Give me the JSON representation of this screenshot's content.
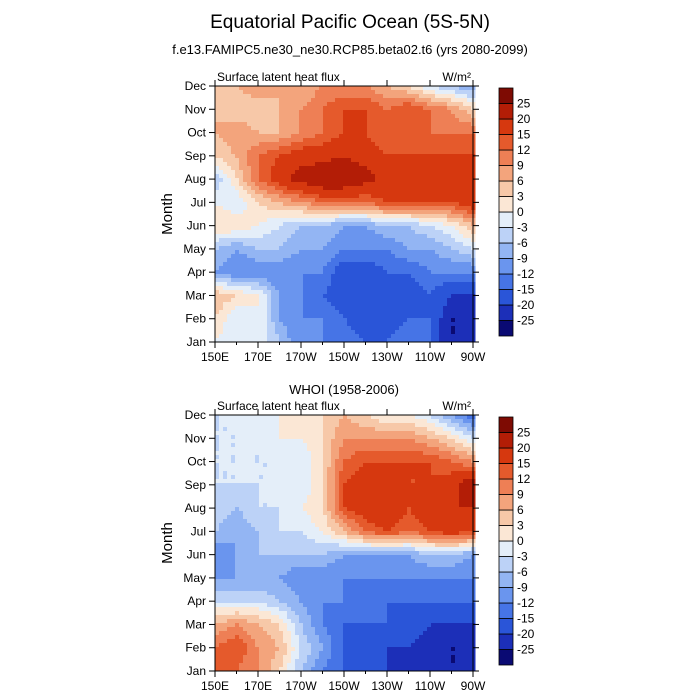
{
  "figure": {
    "title": "Equatorial Pacific Ocean (5S-5N)",
    "subtitle": "f.e13.FAMIPC5.ne30_ne30.RCP85.beta02.t6 (yrs 2080-2099)"
  },
  "colorbar": {
    "labels": [
      "25",
      "20",
      "15",
      "12",
      "9",
      "6",
      "3",
      "0",
      "-3",
      "-6",
      "-9",
      "-12",
      "-15",
      "-20",
      "-25"
    ],
    "levels": [
      -25,
      -20,
      -15,
      -12,
      -9,
      -6,
      -3,
      0,
      3,
      6,
      9,
      12,
      15,
      20,
      25
    ],
    "colors": [
      "#0a0a73",
      "#1c2fb8",
      "#2a55d8",
      "#4674e6",
      "#6a95ee",
      "#93b5f3",
      "#bcd2f7",
      "#e4eef9",
      "#fbe7d5",
      "#f7c8a8",
      "#f3a47c",
      "#ee7f55",
      "#e55a2c",
      "#d6380f",
      "#b31d06",
      "#7e0b03"
    ]
  },
  "chart_data": [
    {
      "type": "heatmap",
      "title": "",
      "left_label": "Surface latent heat flux",
      "right_label": "W/m²",
      "xlabel": "",
      "ylabel": "Month",
      "xlim": [
        150,
        270
      ],
      "xticks": [
        150,
        170,
        190,
        210,
        230,
        250,
        270
      ],
      "xtick_labels": [
        "150E",
        "170E",
        "170W",
        "150W",
        "130W",
        "110W",
        "90W"
      ],
      "y": [
        "Jan",
        "Feb",
        "Mar",
        "Apr",
        "May",
        "Jun",
        "Jul",
        "Aug",
        "Sep",
        "Oct",
        "Nov",
        "Dec"
      ],
      "x": [
        150,
        160,
        170,
        180,
        190,
        200,
        210,
        220,
        230,
        240,
        250,
        260,
        270
      ],
      "z": [
        [
          0,
          -3,
          0,
          -6,
          -12,
          -12,
          -12,
          -15,
          -15,
          -12,
          -15,
          -25,
          -25
        ],
        [
          3,
          -3,
          0,
          -9,
          -12,
          -12,
          -15,
          -18,
          -18,
          -15,
          -15,
          -25,
          -25
        ],
        [
          6,
          3,
          0,
          -9,
          -12,
          -15,
          -18,
          -20,
          -20,
          -18,
          -15,
          -20,
          -20
        ],
        [
          -9,
          -12,
          -12,
          -12,
          -12,
          -12,
          -18,
          -18,
          -15,
          -15,
          -12,
          -12,
          -12
        ],
        [
          -6,
          -9,
          -6,
          -6,
          -9,
          -9,
          -12,
          -12,
          -12,
          -9,
          -9,
          -6,
          -3
        ],
        [
          3,
          3,
          0,
          -3,
          -6,
          -6,
          -9,
          -9,
          -6,
          -6,
          -3,
          0,
          6
        ],
        [
          0,
          -3,
          3,
          6,
          9,
          12,
          12,
          12,
          15,
          15,
          15,
          15,
          18
        ],
        [
          -6,
          3,
          12,
          18,
          22,
          25,
          25,
          22,
          18,
          18,
          18,
          20,
          18
        ],
        [
          3,
          6,
          12,
          15,
          18,
          18,
          20,
          18,
          15,
          15,
          15,
          15,
          15
        ],
        [
          6,
          9,
          6,
          6,
          9,
          12,
          15,
          15,
          12,
          12,
          12,
          12,
          12
        ],
        [
          6,
          3,
          3,
          6,
          9,
          12,
          15,
          15,
          12,
          15,
          12,
          9,
          3
        ],
        [
          6,
          6,
          9,
          6,
          6,
          9,
          9,
          9,
          6,
          3,
          -3,
          -6,
          -9
        ]
      ]
    },
    {
      "type": "heatmap",
      "title": "WHOI (1958-2006)",
      "left_label": "Surface latent heat flux",
      "right_label": "W/m²",
      "xlabel": "",
      "ylabel": "Month",
      "xlim": [
        150,
        270
      ],
      "xticks": [
        150,
        170,
        190,
        210,
        230,
        250,
        270
      ],
      "xtick_labels": [
        "150E",
        "170E",
        "170W",
        "150W",
        "130W",
        "110W",
        "90W"
      ],
      "y": [
        "Jan",
        "Feb",
        "Mar",
        "Apr",
        "May",
        "Jun",
        "Jul",
        "Aug",
        "Sep",
        "Oct",
        "Nov",
        "Dec"
      ],
      "x": [
        150,
        160,
        170,
        180,
        190,
        200,
        210,
        220,
        230,
        240,
        250,
        260,
        270
      ],
      "z": [
        [
          12,
          12,
          9,
          3,
          -6,
          -12,
          -15,
          -18,
          -20,
          -22,
          -25,
          -25,
          -25
        ],
        [
          12,
          15,
          9,
          6,
          -3,
          -9,
          -15,
          -18,
          -20,
          -20,
          -22,
          -25,
          -25
        ],
        [
          6,
          9,
          6,
          3,
          -6,
          -12,
          -15,
          -15,
          -15,
          -18,
          -20,
          -20,
          -20
        ],
        [
          -3,
          -3,
          -3,
          -6,
          -9,
          -12,
          -12,
          -15,
          -15,
          -15,
          -15,
          -15,
          -15
        ],
        [
          -9,
          -9,
          -9,
          -9,
          -12,
          -12,
          -12,
          -12,
          -12,
          -12,
          -12,
          -12,
          -12
        ],
        [
          -12,
          -9,
          -6,
          -6,
          -6,
          -6,
          -9,
          -9,
          -9,
          -9,
          -6,
          -6,
          -9
        ],
        [
          -6,
          -9,
          -6,
          -3,
          -3,
          0,
          6,
          12,
          15,
          12,
          15,
          18,
          15
        ],
        [
          -3,
          -6,
          -3,
          -3,
          0,
          3,
          15,
          18,
          20,
          15,
          20,
          20,
          20
        ],
        [
          -3,
          -3,
          -3,
          -3,
          -3,
          3,
          15,
          18,
          18,
          15,
          15,
          18,
          25
        ],
        [
          -3,
          -3,
          -3,
          -3,
          -3,
          3,
          12,
          15,
          15,
          15,
          15,
          12,
          9
        ],
        [
          -3,
          -3,
          -3,
          0,
          0,
          3,
          9,
          9,
          9,
          9,
          6,
          3,
          -3
        ],
        [
          -3,
          -3,
          0,
          0,
          3,
          3,
          6,
          3,
          0,
          0,
          -3,
          -9,
          -15
        ]
      ]
    }
  ]
}
